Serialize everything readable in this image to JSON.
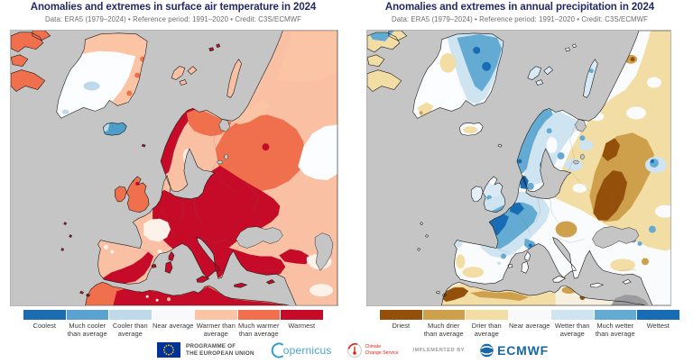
{
  "panels": [
    {
      "id": "temperature",
      "title": "Anomalies and extremes in surface air temperature in 2024",
      "subtitle": "Data: ERA5 (1979–2024) • Reference period: 1991–2020 • Credit: C3S/ECMWF",
      "legend": [
        {
          "label": "Coolest",
          "color": "#1c6cb1"
        },
        {
          "label": "Much cooler than average",
          "color": "#5aa2cf"
        },
        {
          "label": "Cooler than average",
          "color": "#bdd9ea"
        },
        {
          "label": "Near average",
          "color": "#f7f9fa"
        },
        {
          "label": "Warmer than average",
          "color": "#fbc4a4"
        },
        {
          "label": "Much warmer than average",
          "color": "#f0704e"
        },
        {
          "label": "Warmest",
          "color": "#c50b28"
        }
      ]
    },
    {
      "id": "precipitation",
      "title": "Anomalies and extremes in annual precipitation in 2024",
      "subtitle": "Data: ERA5 (1979–2024) • Reference period: 1991–2020 • Credit: C3S/ECMWF",
      "legend": [
        {
          "label": "Driest",
          "color": "#94500b"
        },
        {
          "label": "Much drier than average",
          "color": "#cfa04b"
        },
        {
          "label": "Drier than average",
          "color": "#f2dda4"
        },
        {
          "label": "Near average",
          "color": "#f7f9fa"
        },
        {
          "label": "Wetter than average",
          "color": "#cfe4f1"
        },
        {
          "label": "Much wetter than average",
          "color": "#64abd3"
        },
        {
          "label": "Wettest",
          "color": "#176cb4"
        }
      ]
    }
  ],
  "footer": {
    "eu_programme": [
      "PROGRAMME OF",
      "THE EUROPEAN UNION"
    ],
    "copernicus": "opernicus",
    "climate_service": [
      "Climate",
      "Change Service"
    ],
    "implemented_by": "IMPLEMENTED BY",
    "ecmwf": "ECMWF"
  },
  "map": {
    "ocean_color": "#c5c5c6",
    "no_data_color": "#9c9c9e"
  }
}
